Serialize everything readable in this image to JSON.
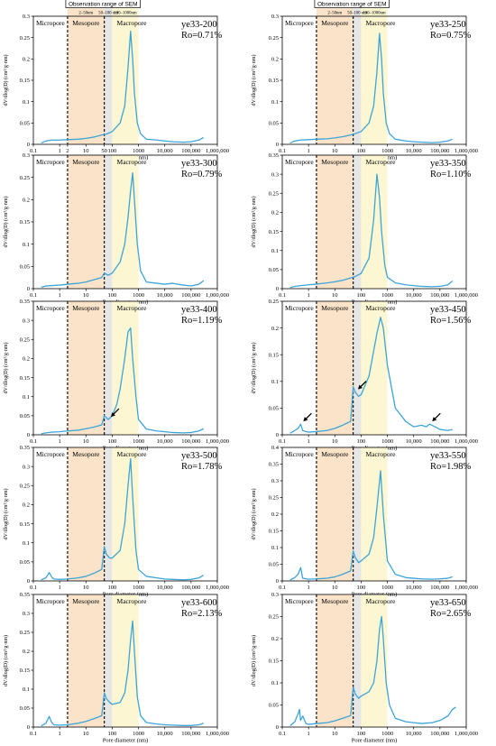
{
  "figure": {
    "observation_title": "Observation range of SEM",
    "observation_ranges": [
      "2–50nm",
      "50–100 nm",
      "100–1000nm"
    ],
    "zone_labels": [
      "Micropore",
      "Mesopore",
      "Macropore"
    ],
    "colors": {
      "meso": "#fae3c8",
      "transition": "#e6e6e6",
      "macro": "#fcf7d2",
      "curve": "#3ea4d8",
      "line": "#000000"
    }
  },
  "chart_data": [
    {
      "type": "line",
      "sample": "ye33-200",
      "ro": "Ro=0.71%",
      "xlabel": "Pore diameter (nm)",
      "ylabel": "dV/dlog(D) (cm³/g·nm)",
      "x_scale": "log",
      "xlim": [
        0.1,
        1000000
      ],
      "ylim": [
        0,
        0.3
      ],
      "yticks": [
        "0",
        "0.05",
        "0.1",
        "0.15",
        "0.2",
        "0.25",
        "0.3"
      ],
      "xticks": [
        "0.1",
        "1",
        "2",
        "10",
        "50",
        "100",
        "1000",
        "10,000",
        "100,000",
        "1,000,000"
      ],
      "peak_x": 500,
      "peak_y": 0.265,
      "x": [
        0.2,
        0.3,
        0.5,
        1,
        2,
        5,
        10,
        20,
        40,
        60,
        100,
        200,
        300,
        400,
        500,
        600,
        700,
        900,
        1200,
        2000,
        5000,
        10000,
        20000,
        50000,
        100000,
        200000,
        300000
      ],
      "y": [
        0.003,
        0.008,
        0.01,
        0.01,
        0.011,
        0.012,
        0.014,
        0.017,
        0.022,
        0.024,
        0.03,
        0.05,
        0.09,
        0.18,
        0.265,
        0.2,
        0.12,
        0.05,
        0.025,
        0.012,
        0.01,
        0.008,
        0.006,
        0.005,
        0.006,
        0.01,
        0.016
      ]
    },
    {
      "type": "line",
      "sample": "ye33-250",
      "ro": "Ro=0.75%",
      "xlabel": "Pore diameter (nm)",
      "ylabel": "dV/dlog(D) (cm³/g·nm)",
      "x_scale": "log",
      "xlim": [
        0.1,
        1000000
      ],
      "ylim": [
        0,
        0.3
      ],
      "yticks": [
        "0",
        "0.05",
        "0.1",
        "0.15",
        "0.2",
        "0.25",
        "0.3"
      ],
      "xticks": [
        "0.1",
        "1",
        "10",
        "100",
        "1000",
        "10,000",
        "100,000",
        "1,000,000"
      ],
      "peak_x": 500,
      "peak_y": 0.26,
      "x": [
        0.2,
        0.3,
        0.5,
        1,
        2,
        5,
        10,
        20,
        40,
        60,
        100,
        200,
        300,
        400,
        500,
        600,
        700,
        900,
        1200,
        2000,
        5000,
        10000,
        20000,
        50000,
        100000,
        200000,
        300000
      ],
      "y": [
        0.003,
        0.008,
        0.01,
        0.011,
        0.012,
        0.013,
        0.015,
        0.018,
        0.022,
        0.025,
        0.03,
        0.05,
        0.09,
        0.17,
        0.26,
        0.2,
        0.12,
        0.05,
        0.025,
        0.012,
        0.008,
        0.006,
        0.005,
        0.004,
        0.005,
        0.008,
        0.012
      ]
    },
    {
      "type": "line",
      "sample": "ye33-300",
      "ro": "Ro=0.79%",
      "xlabel": "Pore diameter (nm)",
      "ylabel": "dV/dlog(D) (cm³/g·nm)",
      "x_scale": "log",
      "xlim": [
        0.1,
        1000000
      ],
      "ylim": [
        0,
        0.3
      ],
      "yticks": [
        "0",
        "0.05",
        "0.1",
        "0.15",
        "0.2",
        "0.25",
        "0.3"
      ],
      "xticks": [
        "0.1",
        "1",
        "10",
        "100",
        "1000",
        "10,000",
        "100,000",
        "1,000,000"
      ],
      "peak_x": 600,
      "peak_y": 0.26,
      "x": [
        0.2,
        0.3,
        0.5,
        1,
        2,
        5,
        10,
        20,
        40,
        50,
        70,
        100,
        200,
        300,
        400,
        500,
        600,
        700,
        900,
        1200,
        2000,
        5000,
        10000,
        20000,
        50000,
        100000,
        200000,
        300000
      ],
      "y": [
        0.003,
        0.006,
        0.007,
        0.008,
        0.01,
        0.012,
        0.015,
        0.02,
        0.025,
        0.035,
        0.03,
        0.035,
        0.06,
        0.1,
        0.16,
        0.22,
        0.26,
        0.2,
        0.1,
        0.04,
        0.015,
        0.012,
        0.01,
        0.012,
        0.008,
        0.006,
        0.01,
        0.018
      ]
    },
    {
      "type": "line",
      "sample": "ye33-350",
      "ro": "Ro=1.10%",
      "xlabel": "Pore diameter (nm)",
      "ylabel": "dV/dlog(D) (cm³/g·nm)",
      "x_scale": "log",
      "xlim": [
        0.1,
        1000000
      ],
      "ylim": [
        0,
        0.35
      ],
      "yticks": [
        "0",
        "0.05",
        "0.1",
        "0.15",
        "0.2",
        "0.25",
        "0.3",
        "0.35"
      ],
      "xticks": [
        "0.1",
        "1",
        "10",
        "100",
        "1000",
        "10,000",
        "100,000",
        "1,000,000"
      ],
      "peak_x": 400,
      "peak_y": 0.3,
      "x": [
        0.2,
        0.3,
        0.5,
        1,
        2,
        5,
        10,
        20,
        40,
        60,
        100,
        200,
        300,
        400,
        500,
        600,
        800,
        1000,
        2000,
        5000,
        10000,
        20000,
        50000,
        100000,
        200000,
        300000
      ],
      "y": [
        0.003,
        0.006,
        0.008,
        0.01,
        0.012,
        0.015,
        0.018,
        0.022,
        0.028,
        0.032,
        0.04,
        0.08,
        0.18,
        0.3,
        0.24,
        0.15,
        0.06,
        0.03,
        0.015,
        0.01,
        0.008,
        0.006,
        0.005,
        0.006,
        0.01,
        0.02
      ]
    },
    {
      "type": "line",
      "sample": "ye33-400",
      "ro": "Ro=1.19%",
      "xlabel": "Pore diameter (nm)",
      "ylabel": "dV/dlog(D) (cm³/g·nm)",
      "x_scale": "log",
      "xlim": [
        0.1,
        1000000
      ],
      "ylim": [
        0,
        0.35
      ],
      "yticks": [
        "0",
        "0.05",
        "0.1",
        "0.15",
        "0.2",
        "0.25",
        "0.3",
        "0.35"
      ],
      "xticks": [
        "0.1",
        "1",
        "10",
        "100",
        "1000",
        "10,000",
        "100,000",
        "1,000,000"
      ],
      "peak_x": 450,
      "peak_y": 0.28,
      "arrows_at_x": [
        70
      ],
      "x": [
        0.2,
        0.3,
        0.5,
        1,
        2,
        5,
        10,
        20,
        40,
        50,
        60,
        70,
        100,
        150,
        200,
        300,
        400,
        500,
        600,
        800,
        1000,
        2000,
        5000,
        10000,
        20000,
        50000,
        100000,
        200000,
        300000
      ],
      "y": [
        0.003,
        0.005,
        0.007,
        0.008,
        0.01,
        0.012,
        0.016,
        0.02,
        0.026,
        0.05,
        0.045,
        0.04,
        0.05,
        0.08,
        0.12,
        0.2,
        0.27,
        0.28,
        0.2,
        0.1,
        0.04,
        0.015,
        0.01,
        0.008,
        0.006,
        0.005,
        0.006,
        0.01,
        0.016
      ]
    },
    {
      "type": "line",
      "sample": "ye33-450",
      "ro": "Ro=1.56%",
      "xlabel": "Pore diameter (nm)",
      "ylabel": "dV/dlog(D) (cm³/g·nm)",
      "x_scale": "log",
      "xlim": [
        0.1,
        1000000
      ],
      "ylim": [
        0,
        0.25
      ],
      "yticks": [
        "0",
        "0.05",
        "0.1",
        "0.15",
        "0.2",
        "0.25"
      ],
      "xticks": [
        "0.1",
        "1",
        "10",
        "100",
        "1000",
        "10,000",
        "100,000",
        "1,000,000"
      ],
      "peak_x": 550,
      "peak_y": 0.22,
      "arrows_at_x": [
        0.5,
        60,
        40000
      ],
      "x": [
        0.2,
        0.3,
        0.4,
        0.5,
        0.6,
        0.8,
        1,
        2,
        5,
        10,
        20,
        40,
        50,
        60,
        80,
        100,
        200,
        400,
        550,
        700,
        1000,
        2000,
        5000,
        10000,
        20000,
        30000,
        40000,
        60000,
        100000,
        200000,
        300000
      ],
      "y": [
        0.003,
        0.008,
        0.012,
        0.02,
        0.008,
        0.006,
        0.005,
        0.006,
        0.008,
        0.012,
        0.018,
        0.025,
        0.09,
        0.08,
        0.072,
        0.075,
        0.11,
        0.19,
        0.22,
        0.2,
        0.13,
        0.05,
        0.025,
        0.015,
        0.018,
        0.015,
        0.02,
        0.016,
        0.01,
        0.008,
        0.01
      ]
    },
    {
      "type": "line",
      "sample": "ye33-500",
      "ro": "Ro=1.78%",
      "xlabel": "Pore diameter (nm)",
      "ylabel": "dV/dlog(D) (cm³/g·nm)",
      "x_scale": "log",
      "xlim": [
        0.1,
        1000000
      ],
      "ylim": [
        0,
        0.35
      ],
      "yticks": [
        "0",
        "0.05",
        "0.1",
        "0.15",
        "0.2",
        "0.25",
        "0.3",
        "0.35"
      ],
      "xticks": [
        "0.1",
        "1",
        "10",
        "100",
        "1000",
        "10,000",
        "100,000",
        "1,000,000"
      ],
      "peak_x": 500,
      "peak_y": 0.32,
      "x": [
        0.2,
        0.3,
        0.4,
        0.5,
        0.6,
        1,
        2,
        5,
        10,
        20,
        40,
        50,
        60,
        80,
        100,
        200,
        300,
        400,
        500,
        600,
        800,
        1000,
        2000,
        5000,
        10000,
        20000,
        50000,
        100000,
        200000,
        300000
      ],
      "y": [
        0.003,
        0.008,
        0.022,
        0.01,
        0.005,
        0.004,
        0.005,
        0.008,
        0.012,
        0.02,
        0.03,
        0.09,
        0.07,
        0.06,
        0.06,
        0.08,
        0.15,
        0.25,
        0.32,
        0.22,
        0.08,
        0.03,
        0.012,
        0.008,
        0.005,
        0.004,
        0.003,
        0.004,
        0.008,
        0.015
      ]
    },
    {
      "type": "line",
      "sample": "ye33-550",
      "ro": "Ro=1.98%",
      "xlabel": "Pore diameter (nm)",
      "ylabel": "dV/dlog(D) (cm³/g·nm)",
      "x_scale": "log",
      "xlim": [
        0.1,
        1000000
      ],
      "ylim": [
        0,
        0.4
      ],
      "yticks": [
        "0",
        "0.05",
        "0.1",
        "0.15",
        "0.2",
        "0.25",
        "0.3",
        "0.35",
        "0.4"
      ],
      "xticks": [
        "0.1",
        "1",
        "10",
        "100",
        "1000",
        "10,000",
        "100,000",
        "1,000,000"
      ],
      "peak_x": 550,
      "peak_y": 0.33,
      "x": [
        0.2,
        0.3,
        0.4,
        0.5,
        0.6,
        1,
        2,
        5,
        10,
        20,
        40,
        50,
        60,
        80,
        100,
        200,
        300,
        400,
        550,
        700,
        1000,
        2000,
        5000,
        10000,
        20000,
        50000,
        100000,
        200000,
        300000
      ],
      "y": [
        0.003,
        0.01,
        0.02,
        0.04,
        0.008,
        0.005,
        0.006,
        0.008,
        0.012,
        0.02,
        0.03,
        0.09,
        0.07,
        0.055,
        0.06,
        0.08,
        0.13,
        0.22,
        0.33,
        0.2,
        0.06,
        0.02,
        0.01,
        0.008,
        0.006,
        0.005,
        0.006,
        0.008,
        0.012
      ]
    },
    {
      "type": "line",
      "sample": "ye33-600",
      "ro": "Ro=2.13%",
      "xlabel": "Pore diameter (nm)",
      "ylabel": "dV/dlog(D) (cm³/g·nm)",
      "x_scale": "log",
      "xlim": [
        0.1,
        1000000
      ],
      "ylim": [
        0,
        0.35
      ],
      "yticks": [
        "0",
        "0.05",
        "0.1",
        "0.15",
        "0.2",
        "0.25",
        "0.3",
        "0.35"
      ],
      "xticks": [
        "0.1",
        "1",
        "10",
        "100",
        "1000",
        "10,000",
        "100,000",
        "1,000,000"
      ],
      "peak_x": 600,
      "peak_y": 0.28,
      "x": [
        0.2,
        0.3,
        0.4,
        0.5,
        0.6,
        1,
        2,
        5,
        10,
        20,
        40,
        50,
        60,
        80,
        100,
        200,
        300,
        400,
        500,
        600,
        700,
        900,
        1200,
        2000,
        5000,
        10000,
        20000,
        50000,
        100000,
        200000,
        300000
      ],
      "y": [
        0.003,
        0.01,
        0.028,
        0.012,
        0.006,
        0.005,
        0.006,
        0.01,
        0.015,
        0.022,
        0.03,
        0.09,
        0.075,
        0.065,
        0.06,
        0.065,
        0.09,
        0.15,
        0.23,
        0.28,
        0.2,
        0.08,
        0.03,
        0.012,
        0.008,
        0.006,
        0.005,
        0.004,
        0.004,
        0.006,
        0.01
      ]
    },
    {
      "type": "line",
      "sample": "ye33-650",
      "ro": "Ro=2.65%",
      "xlabel": "Pore diameter (nm)",
      "ylabel": "dV/dlog(D) (cm³/g·nm)",
      "x_scale": "log",
      "xlim": [
        0.1,
        1000000
      ],
      "ylim": [
        0,
        0.3
      ],
      "yticks": [
        "0",
        "0.05",
        "0.1",
        "0.15",
        "0.2",
        "0.25",
        "0.3"
      ],
      "xticks": [
        "0.1",
        "1",
        "10",
        "100",
        "1000",
        "10,000",
        "100,000",
        "1,000,000"
      ],
      "peak_x": 600,
      "peak_y": 0.25,
      "x": [
        0.2,
        0.3,
        0.4,
        0.45,
        0.5,
        0.6,
        0.8,
        1,
        2,
        5,
        10,
        20,
        40,
        50,
        60,
        80,
        100,
        200,
        300,
        400,
        500,
        600,
        700,
        900,
        1200,
        2000,
        5000,
        10000,
        20000,
        50000,
        100000,
        200000,
        300000,
        400000
      ],
      "y": [
        0.003,
        0.012,
        0.03,
        0.04,
        0.015,
        0.025,
        0.008,
        0.006,
        0.008,
        0.01,
        0.014,
        0.02,
        0.026,
        0.09,
        0.075,
        0.065,
        0.07,
        0.08,
        0.1,
        0.15,
        0.22,
        0.25,
        0.2,
        0.1,
        0.05,
        0.02,
        0.012,
        0.01,
        0.008,
        0.01,
        0.015,
        0.025,
        0.04,
        0.045
      ]
    }
  ]
}
